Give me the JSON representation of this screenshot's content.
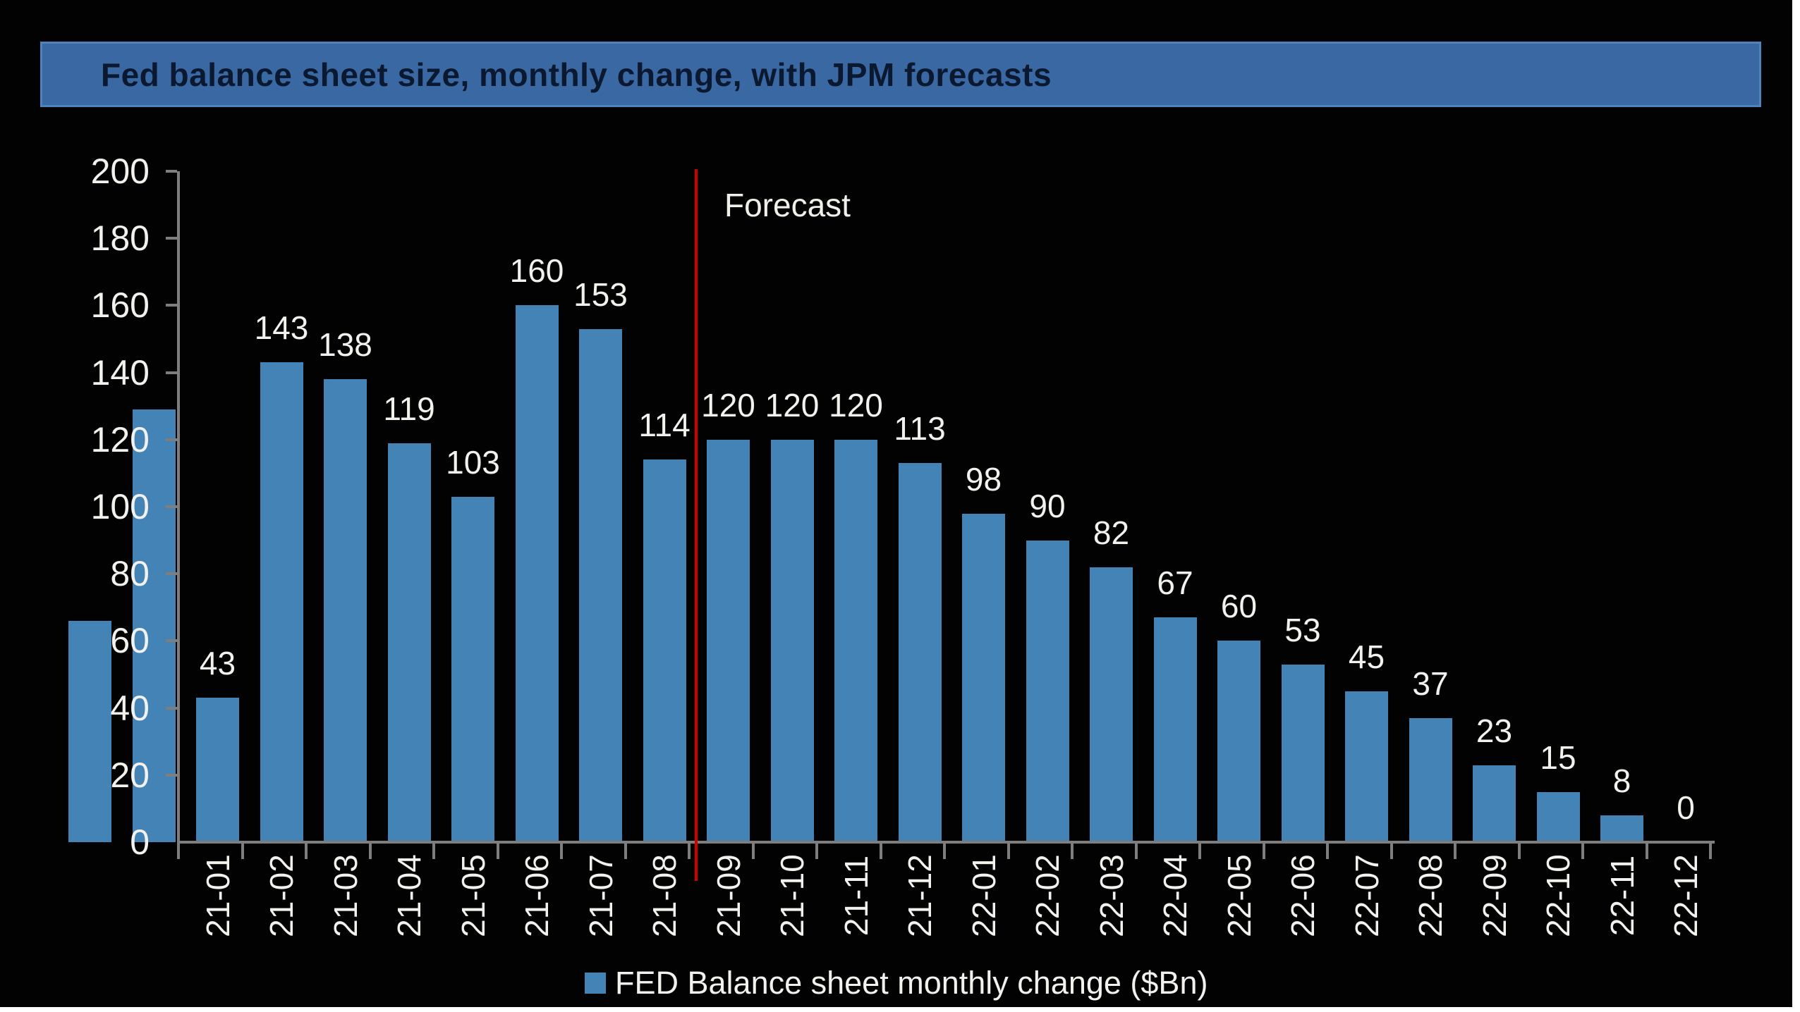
{
  "title_bar": {
    "text": "Fed balance sheet size, monthly change, with JPM forecasts"
  },
  "annotations": {
    "forecast": "Forecast"
  },
  "legend": {
    "label": "FED Balance sheet monthly change ($Bn)"
  },
  "chart_data": {
    "type": "bar",
    "title": "Fed balance sheet size, monthly change, with JPM forecasts",
    "xlabel": "",
    "ylabel": "",
    "ylim": [
      0,
      200
    ],
    "ytick_step": 20,
    "yticks": [
      0,
      20,
      40,
      60,
      80,
      100,
      120,
      140,
      160,
      180,
      200
    ],
    "grid": false,
    "legend_position": "bottom-center",
    "categories": [
      "",
      "",
      "21-01",
      "21-02",
      "21-03",
      "21-04",
      "21-05",
      "21-06",
      "21-07",
      "21-08",
      "21-09",
      "21-10",
      "21-11",
      "21-12",
      "22-01",
      "22-02",
      "22-03",
      "22-04",
      "22-05",
      "22-06",
      "22-07",
      "22-08",
      "22-09",
      "22-10",
      "22-11",
      "22-12"
    ],
    "series": [
      {
        "name": "FED Balance sheet monthly change ($Bn)",
        "values": [
          66,
          129,
          43,
          143,
          138,
          119,
          103,
          160,
          153,
          114,
          120,
          120,
          120,
          113,
          98,
          90,
          82,
          67,
          60,
          53,
          45,
          37,
          23,
          15,
          8,
          0
        ]
      }
    ],
    "value_labels_shown_from_index": 2,
    "forecast_line_between": [
      "21-08",
      "21-09"
    ],
    "forecast_annotation": "Forecast",
    "colors": {
      "bar": "#4383B6",
      "axis": "#7E7E7E",
      "label_text": "#F2F1ED",
      "forecast_line": "#D10000",
      "plot_background": "#020202",
      "title_fill": "#3A68A2",
      "title_border": "#4F83C0",
      "title_text": "#0A1830",
      "page_edge": "#FFFFFF"
    }
  }
}
